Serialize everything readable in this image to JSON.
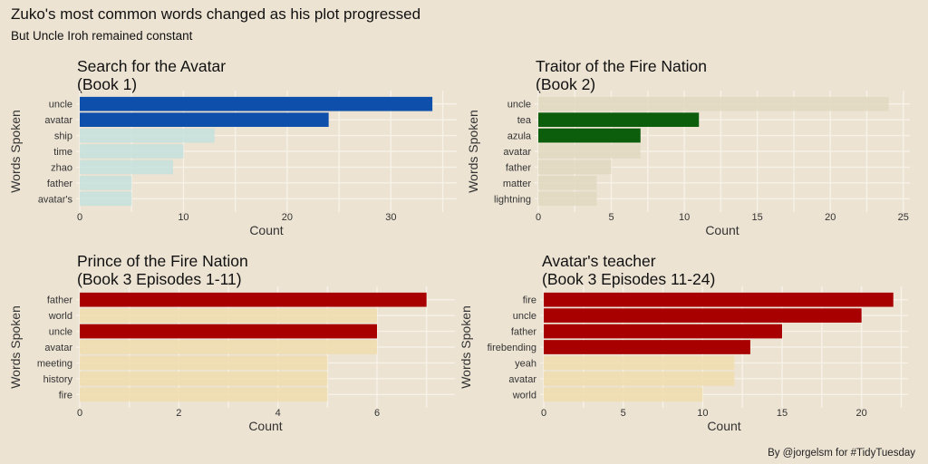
{
  "header": {
    "title": "Zuko's most common words changed as his plot progressed",
    "subtitle": "But Uncle Iroh remained constant"
  },
  "footer": {
    "caption": "By @jorgelsm for #TidyTuesday"
  },
  "chart_data": [
    {
      "type": "bar",
      "orientation": "horizontal",
      "title_line1": "Search for the Avatar",
      "title_line2": "(Book 1)",
      "xlabel": "Count",
      "ylabel": "Words Spoken",
      "xlim": [
        0,
        36
      ],
      "xticks": [
        0,
        10,
        20,
        30
      ],
      "categories": [
        "uncle",
        "avatar",
        "ship",
        "time",
        "zhao",
        "father",
        "avatar's"
      ],
      "values": [
        34,
        24,
        13,
        10,
        9,
        5,
        5
      ],
      "highlight": [
        true,
        true,
        false,
        false,
        false,
        false,
        false
      ],
      "highlight_color": "#0d4faa",
      "base_color": "#c5e0dd",
      "grid": true
    },
    {
      "type": "bar",
      "orientation": "horizontal",
      "title_line1": "Traitor of the Fire Nation",
      "title_line2": "(Book 2)",
      "xlabel": "Count",
      "ylabel": "Words Spoken",
      "xlim": [
        0,
        25.2
      ],
      "xticks": [
        0,
        5,
        10,
        15,
        20,
        25
      ],
      "categories": [
        "uncle",
        "tea",
        "azula",
        "avatar",
        "father",
        "matter",
        "lightning"
      ],
      "values": [
        24,
        11,
        7,
        7,
        5,
        4,
        4
      ],
      "highlight": [
        false,
        true,
        true,
        false,
        false,
        false,
        false
      ],
      "highlight_color": "#0c5e0c",
      "base_color": "#e2d8c0",
      "grid": true
    },
    {
      "type": "bar",
      "orientation": "horizontal",
      "title_line1": "Prince of the Fire Nation",
      "title_line2": "(Book 3 Episodes 1-11)",
      "xlabel": "Count",
      "ylabel": "Words Spoken",
      "xlim": [
        0,
        7.5
      ],
      "xticks": [
        0,
        2,
        4,
        6
      ],
      "categories": [
        "father",
        "world",
        "uncle",
        "avatar",
        "meeting",
        "history",
        "fire"
      ],
      "values": [
        7,
        6,
        6,
        6,
        5,
        5,
        5
      ],
      "highlight": [
        true,
        false,
        true,
        false,
        false,
        false,
        false
      ],
      "highlight_color": "#a80000",
      "base_color": "#f0dcae",
      "grid": true
    },
    {
      "type": "bar",
      "orientation": "horizontal",
      "title_line1": "Avatar's teacher",
      "title_line2": "(Book 3 Episodes 11-24)",
      "xlabel": "Count",
      "ylabel": "Words Spoken",
      "xlim": [
        0,
        22.7
      ],
      "xticks": [
        0,
        5,
        10,
        15,
        20
      ],
      "categories": [
        "fire",
        "uncle",
        "father",
        "firebending",
        "yeah",
        "avatar",
        "world"
      ],
      "values": [
        22,
        20,
        15,
        13,
        12,
        12,
        10
      ],
      "highlight": [
        true,
        true,
        true,
        true,
        false,
        false,
        false
      ],
      "highlight_color": "#a80000",
      "base_color": "#f0dcae",
      "grid": true
    }
  ]
}
